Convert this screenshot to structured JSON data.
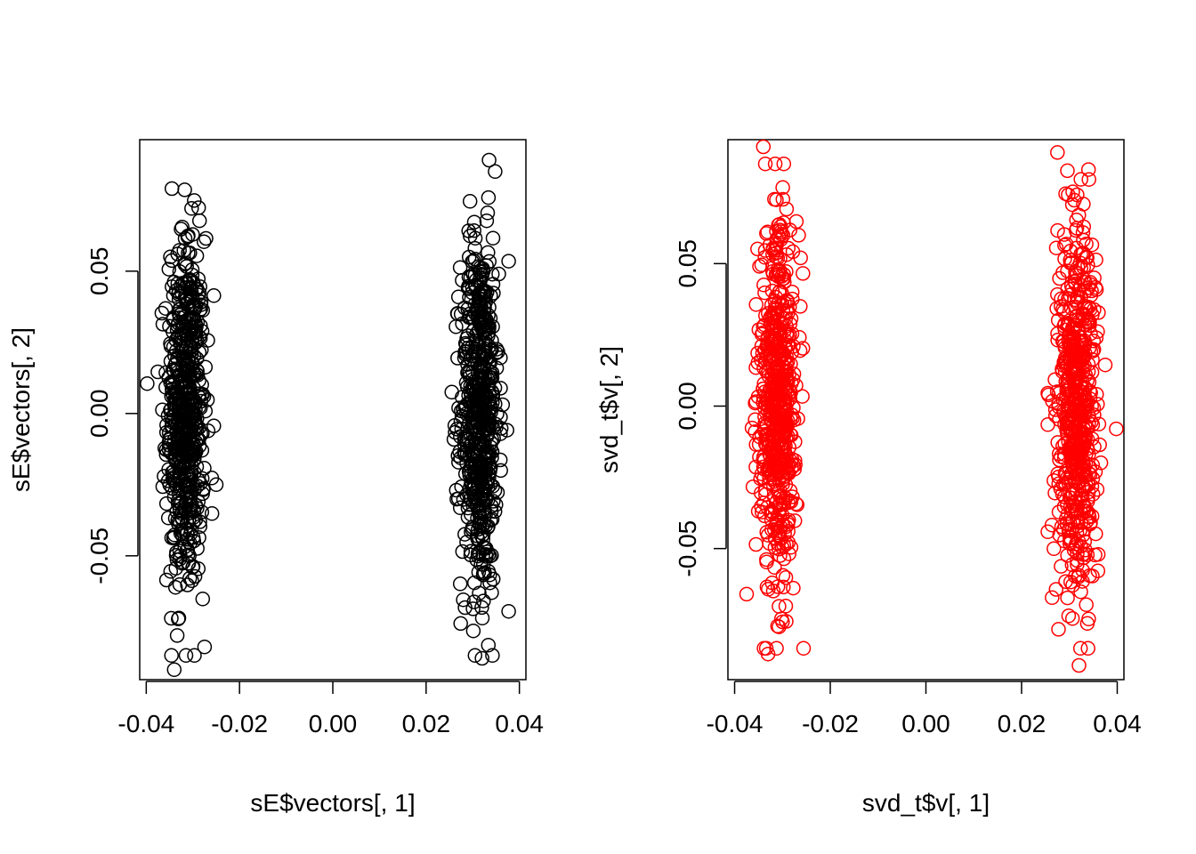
{
  "chart_data": [
    {
      "type": "scatter",
      "title": "",
      "xlabel": "sE$vectors[, 1]",
      "ylabel": "sE$vectors[, 2]",
      "xlim": [
        -0.0414,
        0.0414
      ],
      "ylim": [
        -0.0935,
        0.0962
      ],
      "xticks": [
        -0.04,
        -0.02,
        0.0,
        0.02,
        0.04
      ],
      "xtick_labels": [
        "-0.04",
        "-0.02",
        "0.00",
        "0.02",
        "0.04"
      ],
      "yticks": [
        -0.05,
        0.0,
        0.05
      ],
      "ytick_labels": [
        "-0.05",
        "0.00",
        "0.05"
      ],
      "color": "#000000",
      "marker": "open-circle",
      "grid": false,
      "clusters": [
        {
          "x_center": -0.0315,
          "x_sd": 0.002,
          "y_sd": 0.031,
          "n": 600
        },
        {
          "x_center": 0.0315,
          "x_sd": 0.002,
          "y_sd": 0.031,
          "n": 600
        }
      ],
      "outliers": [
        {
          "x": -0.0398,
          "y": 0.0105
        },
        {
          "x": 0.0335,
          "y": 0.089
        },
        {
          "x": 0.0377,
          "y": -0.0695
        },
        {
          "x": -0.0275,
          "y": -0.082
        },
        {
          "x": -0.034,
          "y": -0.09
        },
        {
          "x": 0.032,
          "y": -0.086
        },
        {
          "x": -0.0345,
          "y": 0.079
        },
        {
          "x": 0.0377,
          "y": 0.0535
        },
        {
          "x": -0.025,
          "y": -0.025
        }
      ]
    },
    {
      "type": "scatter",
      "title": "",
      "xlabel": "svd_t$v[, 1]",
      "ylabel": "svd_t$v[, 2]",
      "xlim": [
        -0.0414,
        0.0414
      ],
      "ylim": [
        -0.096,
        0.0935
      ],
      "xticks": [
        -0.04,
        -0.02,
        0.0,
        0.02,
        0.04
      ],
      "xtick_labels": [
        "-0.04",
        "-0.02",
        "0.00",
        "0.02",
        "0.04"
      ],
      "yticks": [
        -0.05,
        0.0,
        0.05
      ],
      "ytick_labels": [
        "-0.05",
        "0.00",
        "0.05"
      ],
      "color": "#ff0000",
      "marker": "open-circle",
      "grid": false,
      "clusters": [
        {
          "x_center": -0.031,
          "x_sd": 0.002,
          "y_sd": 0.031,
          "n": 600
        },
        {
          "x_center": 0.0315,
          "x_sd": 0.002,
          "y_sd": 0.031,
          "n": 600
        }
      ],
      "outliers": [
        {
          "x": 0.0398,
          "y": -0.008
        },
        {
          "x": -0.034,
          "y": 0.091
        },
        {
          "x": 0.0275,
          "y": 0.089
        },
        {
          "x": -0.0375,
          "y": -0.066
        },
        {
          "x": 0.032,
          "y": -0.091
        },
        {
          "x": -0.033,
          "y": -0.087
        },
        {
          "x": 0.034,
          "y": 0.083
        },
        {
          "x": -0.0262,
          "y": 0.052
        },
        {
          "x": 0.0255,
          "y": -0.0065
        }
      ]
    }
  ]
}
